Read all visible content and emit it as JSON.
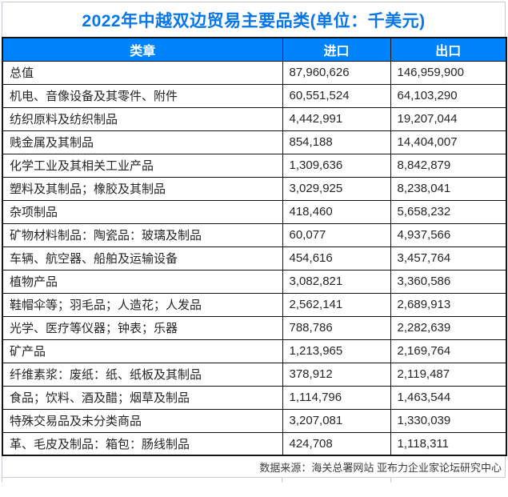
{
  "page": {
    "title": "2022年中越双边贸易主要品类(单位：千美元)",
    "footer_source": "数据来源：海关总署网站 亚布力企业家论坛研究中心"
  },
  "colors": {
    "title_text": "#0876E8",
    "header_bg": "#0084FE",
    "header_text": "#FFFFFF",
    "table_border": "#141414",
    "gridline": "#C6CBD6",
    "body_text": "#252525",
    "footer_text": "#3C3C3C"
  },
  "chart_data": {
    "type": "table",
    "title": "2022年中越双边贸易主要品类(单位：千美元)",
    "columns": [
      "类章",
      "进口",
      "出口"
    ],
    "rows": [
      [
        "总值",
        "87,960,626",
        "146,959,900"
      ],
      [
        "机电、音像设备及其零件、附件",
        "60,551,524",
        "64,103,290"
      ],
      [
        "纺织原料及纺织制品",
        "4,442,991",
        "19,207,044"
      ],
      [
        "贱金属及其制品",
        "854,188",
        "14,404,007"
      ],
      [
        "化学工业及其相关工业产品",
        "1,309,636",
        "8,842,879"
      ],
      [
        "塑料及其制品；橡胶及其制品",
        "3,029,925",
        "8,238,041"
      ],
      [
        "杂项制品",
        "418,460",
        "5,658,232"
      ],
      [
        "矿物材料制品：陶瓷品：玻璃及制品",
        "60,077",
        "4,937,566"
      ],
      [
        "车辆、航空器、船舶及运输设备",
        "454,616",
        "3,457,764"
      ],
      [
        "植物产品",
        "3,082,821",
        "3,360,586"
      ],
      [
        "鞋帽伞等；羽毛品；人造花；人发品",
        "2,562,141",
        "2,689,913"
      ],
      [
        "光学、医疗等仪器；钟表；乐器",
        "788,786",
        "2,282,639"
      ],
      [
        "矿产品",
        "1,213,965",
        "2,169,764"
      ],
      [
        "纤维素浆：废纸：纸、纸板及其制品",
        "378,912",
        "2,119,487"
      ],
      [
        "食品；饮料、酒及醋；烟草及制品",
        "1,114,796",
        "1,463,544"
      ],
      [
        "特殊交易品及未分类商品",
        "3,207,081",
        "1,330,039"
      ],
      [
        "革、毛皮及制品：箱包：肠线制品",
        "424,708",
        "1,118,311"
      ]
    ],
    "source_note": "数据来源：海关总署网站 亚布力企业家论坛研究中心"
  }
}
